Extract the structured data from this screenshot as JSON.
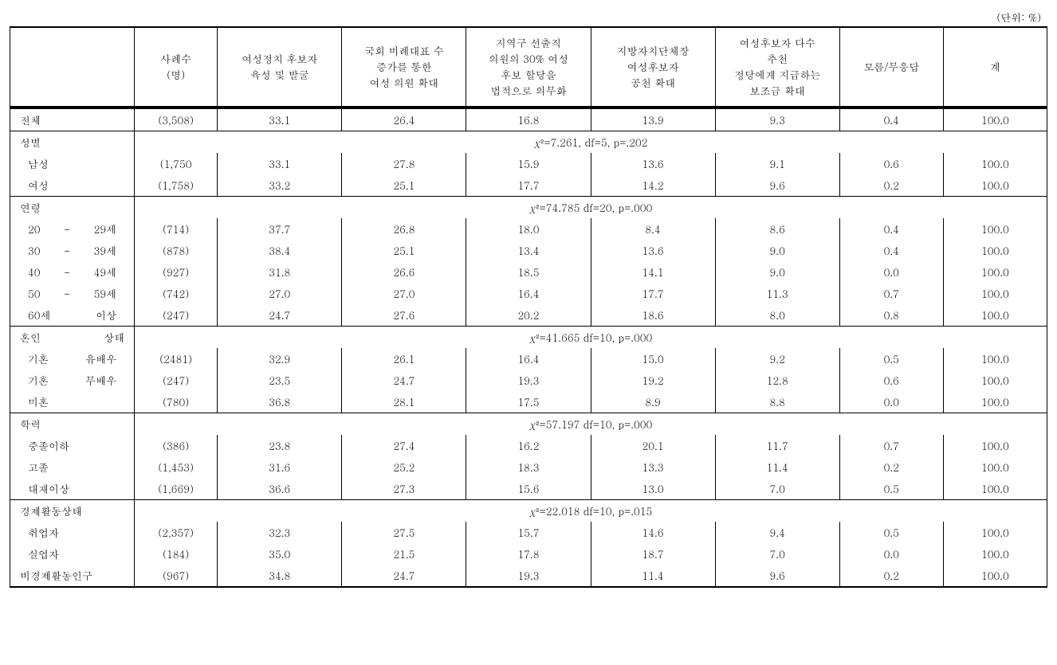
{
  "unit_label": "(단위: %)",
  "columns": {
    "c0": "",
    "c1": "사례수\n(명)",
    "c2": "여성정치 후보자\n육성 및 발굴",
    "c3": "국회 비례대표 수\n증가를 통한\n여성 의원 확대",
    "c4": "지역구 선출직\n의원의 30% 여성\n후보 할당을\n법적으로 의무화",
    "c5": "지방자치단체장\n여성후보자\n공천 확대",
    "c6": "여성후보자 다수\n추천\n정당에게 지급하는\n보조금 확대",
    "c7": "모름/무응답",
    "c8": "계"
  },
  "total": {
    "label": "전체",
    "sample": "(3,508)",
    "v": [
      "33.1",
      "26.4",
      "16.8",
      "13.9",
      "9.3",
      "0.4",
      "100.0"
    ]
  },
  "sections": [
    {
      "label": "성별",
      "stat": "χ²=7.261, df=5, p=.202",
      "rows": [
        {
          "label": "남성",
          "sample": "(1,750",
          "v": [
            "33.1",
            "27.8",
            "15.9",
            "13.6",
            "9.1",
            "0.6",
            "100.0"
          ]
        },
        {
          "label": "여성",
          "sample": "(1,758)",
          "v": [
            "33.2",
            "25.1",
            "17.7",
            "14.2",
            "9.6",
            "0.2",
            "100.0"
          ]
        }
      ]
    },
    {
      "label": "연령",
      "stat": "χ²=74.785 df=20, p=.000",
      "rows": [
        {
          "label": "20 - 29세",
          "sample": "(714)",
          "v": [
            "37.7",
            "26.8",
            "18.0",
            "8.4",
            "8.6",
            "0.4",
            "100.0"
          ]
        },
        {
          "label": "30 - 39세",
          "sample": "(878)",
          "v": [
            "38.4",
            "25.1",
            "13.4",
            "13.6",
            "9.0",
            "0.4",
            "100.0"
          ]
        },
        {
          "label": "40 - 49세",
          "sample": "(927)",
          "v": [
            "31.8",
            "26.6",
            "18.5",
            "14.1",
            "9.0",
            "0.0",
            "100.0"
          ]
        },
        {
          "label": "50 - 59세",
          "sample": "(742)",
          "v": [
            "27.0",
            "27.0",
            "16.4",
            "17.7",
            "11.3",
            "0.7",
            "100.0"
          ]
        },
        {
          "label": "60세 이상",
          "sample": "(247)",
          "v": [
            "24.7",
            "27.6",
            "20.2",
            "18.6",
            "8.0",
            "0.8",
            "100.0"
          ]
        }
      ]
    },
    {
      "label": "혼인 상태",
      "stat": "χ²=41.665 df=10, p=.000",
      "rows": [
        {
          "label": "기혼 유배우",
          "sample": "(2481)",
          "v": [
            "32.9",
            "26.1",
            "16.4",
            "15.0",
            "9.2",
            "0.5",
            "100.0"
          ]
        },
        {
          "label": "기혼 무배우",
          "sample": "(247)",
          "v": [
            "23.5",
            "24.7",
            "19.3",
            "19.2",
            "12.8",
            "0.6",
            "100.0"
          ]
        },
        {
          "label": "미혼",
          "sample": "(780)",
          "v": [
            "36.8",
            "28.1",
            "17.5",
            "8.9",
            "8.8",
            "0.0",
            "100.0"
          ]
        }
      ]
    },
    {
      "label": "학력",
      "stat": "χ²=57.197 df=10, p=.000",
      "rows": [
        {
          "label": "중졸이하",
          "sample": "(386)",
          "v": [
            "23.8",
            "27.4",
            "16.2",
            "20.1",
            "11.7",
            "0.7",
            "100.0"
          ]
        },
        {
          "label": "고졸",
          "sample": "(1,453)",
          "v": [
            "31.6",
            "25.2",
            "18.3",
            "13.3",
            "11.4",
            "0.2",
            "100.0"
          ]
        },
        {
          "label": "대재이상",
          "sample": "(1,669)",
          "v": [
            "36.6",
            "27.3",
            "15.6",
            "13.0",
            "7.0",
            "0.5",
            "100.0"
          ]
        }
      ]
    },
    {
      "label": "경제활동상태",
      "label_compact": true,
      "stat": "χ²=22.018 df=10, p=.015",
      "rows": [
        {
          "label": "취업자",
          "sample": "(2,357)",
          "v": [
            "32.3",
            "27.5",
            "15.7",
            "14.6",
            "9.4",
            "0.5",
            "100.0"
          ]
        },
        {
          "label": "실업자",
          "sample": "(184)",
          "v": [
            "35.0",
            "21.5",
            "17.8",
            "18.7",
            "7.0",
            "0.0",
            "100.0"
          ]
        },
        {
          "label": "비경제활동인구",
          "label_compact": true,
          "sample": "(967)",
          "v": [
            "34.8",
            "24.7",
            "19.3",
            "11.4",
            "9.6",
            "0.2",
            "100.0"
          ]
        }
      ]
    }
  ]
}
